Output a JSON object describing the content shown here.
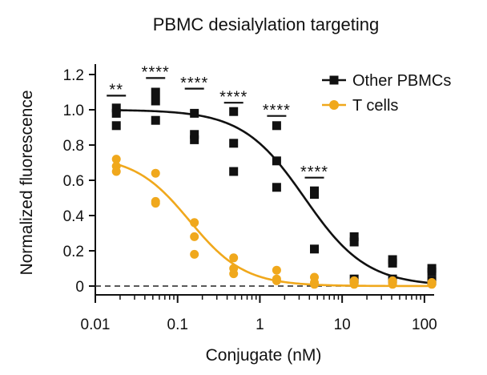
{
  "chart_data": {
    "type": "scatter",
    "title": "PBMC desialylation targeting",
    "xlabel": "Conjugate (nM)",
    "ylabel": "Normalized fluorescence",
    "xscale": "log",
    "xlim": [
      0.01,
      120
    ],
    "ylim": [
      -0.05,
      1.25
    ],
    "xticks": [
      0.01,
      0.1,
      1,
      10,
      100
    ],
    "xtick_labels": [
      "0.01",
      "0.1",
      "1",
      "10",
      "100"
    ],
    "yticks": [
      0,
      0.2,
      0.4,
      0.6,
      0.8,
      1.0,
      1.2
    ],
    "ytick_labels": [
      "0",
      "0.2",
      "0.4",
      "0.6",
      "0.8",
      "1.0",
      "1.2"
    ],
    "reference_line": {
      "y": 0,
      "style": "dashed"
    },
    "legend": {
      "position": "top-right",
      "entries": [
        "Other PBMCs",
        "T cells"
      ]
    },
    "series": [
      {
        "name": "Other PBMCs",
        "marker": "square",
        "color": "#111111",
        "x": [
          0.018,
          0.018,
          0.018,
          0.054,
          0.054,
          0.054,
          0.16,
          0.16,
          0.16,
          0.48,
          0.48,
          0.48,
          1.6,
          1.6,
          1.6,
          4.6,
          4.6,
          4.6,
          14,
          14,
          14,
          41,
          41,
          41,
          123,
          123,
          123
        ],
        "y": [
          1.01,
          0.98,
          0.91,
          1.1,
          1.05,
          0.94,
          0.98,
          0.86,
          0.83,
          0.99,
          0.81,
          0.65,
          0.91,
          0.71,
          0.56,
          0.54,
          0.52,
          0.21,
          0.28,
          0.25,
          0.04,
          0.15,
          0.13,
          0.04,
          0.1,
          0.08,
          0.03
        ],
        "fit": {
          "model": "four-parameter logistic",
          "top": 1.0,
          "bottom": 0.0,
          "ic50": 3.5,
          "hill": 1.15
        }
      },
      {
        "name": "T cells",
        "marker": "circle",
        "color": "#F0A81C",
        "x": [
          0.018,
          0.018,
          0.018,
          0.054,
          0.054,
          0.054,
          0.16,
          0.16,
          0.16,
          0.48,
          0.48,
          0.48,
          1.6,
          1.6,
          1.6,
          4.6,
          4.6,
          4.6,
          14,
          14,
          14,
          41,
          41,
          41,
          123,
          123,
          123
        ],
        "y": [
          0.72,
          0.68,
          0.65,
          0.64,
          0.48,
          0.47,
          0.36,
          0.28,
          0.18,
          0.16,
          0.1,
          0.07,
          0.09,
          0.04,
          0.03,
          0.05,
          0.02,
          0.01,
          0.03,
          0.02,
          0.01,
          0.03,
          0.02,
          0.01,
          0.02,
          0.02,
          0.01
        ],
        "fit": {
          "model": "four-parameter logistic",
          "top": 0.74,
          "bottom": 0.0,
          "ic50": 0.14,
          "hill": 1.3
        }
      }
    ],
    "annotations": [
      {
        "text": "**",
        "x": 0.018
      },
      {
        "text": "****",
        "x": 0.054
      },
      {
        "text": "****",
        "x": 0.16
      },
      {
        "text": "****",
        "x": 0.48
      },
      {
        "text": "****",
        "x": 1.6
      },
      {
        "text": "****",
        "x": 4.6
      }
    ]
  }
}
